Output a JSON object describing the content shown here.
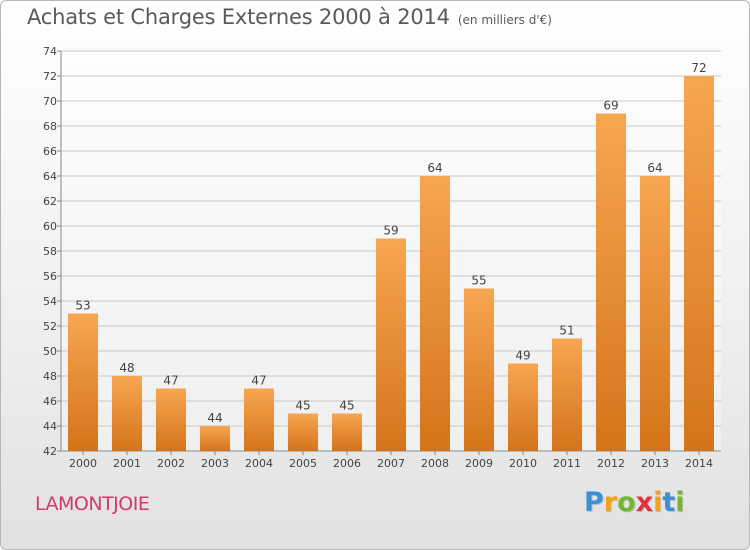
{
  "title": "Achats et Charges Externes 2000 à 2014",
  "subtitle": "(en milliers d'€)",
  "place": "LAMONTJOIE",
  "logo": {
    "text": "Proxiti",
    "letters": [
      {
        "ch": "P",
        "color": "#3a8fd6"
      },
      {
        "ch": "r",
        "color": "#f2a21a"
      },
      {
        "ch": "o",
        "color": "#74b62f"
      },
      {
        "ch": "x",
        "color": "#e2323a"
      },
      {
        "ch": "i",
        "color": "#f2a21a"
      },
      {
        "ch": "t",
        "color": "#3a8fd6"
      },
      {
        "ch": "i",
        "color": "#74b62f"
      }
    ]
  },
  "colors": {
    "bar_top": "#f7a650",
    "bar_bottom": "#d4741a",
    "grid": "#c8c8c8",
    "text": "#444444"
  },
  "chart_data": {
    "type": "bar",
    "categories": [
      "2000",
      "2001",
      "2002",
      "2003",
      "2004",
      "2005",
      "2006",
      "2007",
      "2008",
      "2009",
      "2010",
      "2011",
      "2012",
      "2013",
      "2014"
    ],
    "values": [
      53,
      48,
      47,
      44,
      47,
      45,
      45,
      59,
      64,
      55,
      49,
      51,
      69,
      64,
      72
    ],
    "ylim": [
      42,
      74
    ],
    "yticks": [
      42,
      44,
      46,
      48,
      50,
      52,
      54,
      56,
      58,
      60,
      62,
      64,
      66,
      68,
      70,
      72,
      74
    ],
    "grid": true
  }
}
